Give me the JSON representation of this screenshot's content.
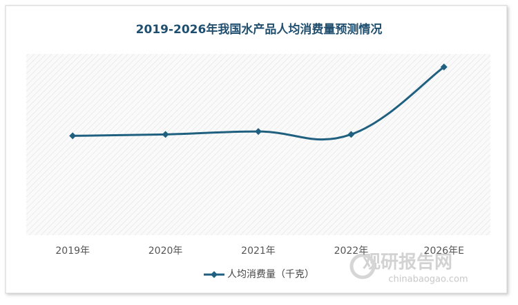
{
  "chart_data": {
    "type": "line",
    "title": "2019-2026年我国水产品人均消费量预测情况",
    "categories": [
      "2019年",
      "2020年",
      "2021年",
      "2022年",
      "2026年E"
    ],
    "series": [
      {
        "name": "人均消费量（千克）",
        "color": "#1f5f7f",
        "values": [
          13.7,
          13.9,
          14.3,
          13.9,
          23.2
        ]
      }
    ],
    "ylim": [
      0,
      25
    ],
    "smooth": true,
    "watermark": {
      "name": "观研报告网",
      "url": "chinabaogao.com"
    }
  }
}
